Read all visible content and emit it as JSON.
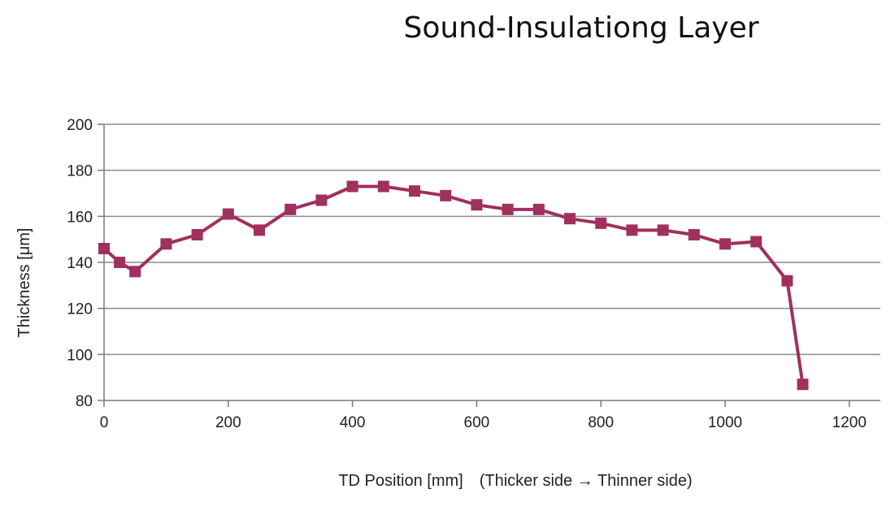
{
  "chart_data": {
    "type": "line",
    "title": "Sound-Insulationg Layer",
    "xlabel": "TD Position [mm]　(Thicker side → Thinner side)",
    "ylabel": "Thickness [μm]",
    "xlim": [
      0,
      1250
    ],
    "ylim": [
      80,
      200
    ],
    "xticks": [
      0,
      200,
      400,
      600,
      800,
      1000,
      1200
    ],
    "yticks": [
      80,
      100,
      120,
      140,
      160,
      180,
      200
    ],
    "grid": "horizontal",
    "legend": "none",
    "series": [
      {
        "color": "#a0305e",
        "marker": "square",
        "x": [
          0,
          25,
          50,
          100,
          150,
          200,
          250,
          300,
          350,
          400,
          450,
          500,
          550,
          600,
          650,
          700,
          750,
          800,
          850,
          900,
          950,
          1000,
          1050,
          1100,
          1125
        ],
        "y": [
          146,
          140,
          136,
          148,
          152,
          161,
          154,
          163,
          167,
          173,
          173,
          171,
          169,
          165,
          163,
          163,
          159,
          157,
          154,
          154,
          152,
          148,
          149,
          132,
          87
        ]
      }
    ]
  }
}
